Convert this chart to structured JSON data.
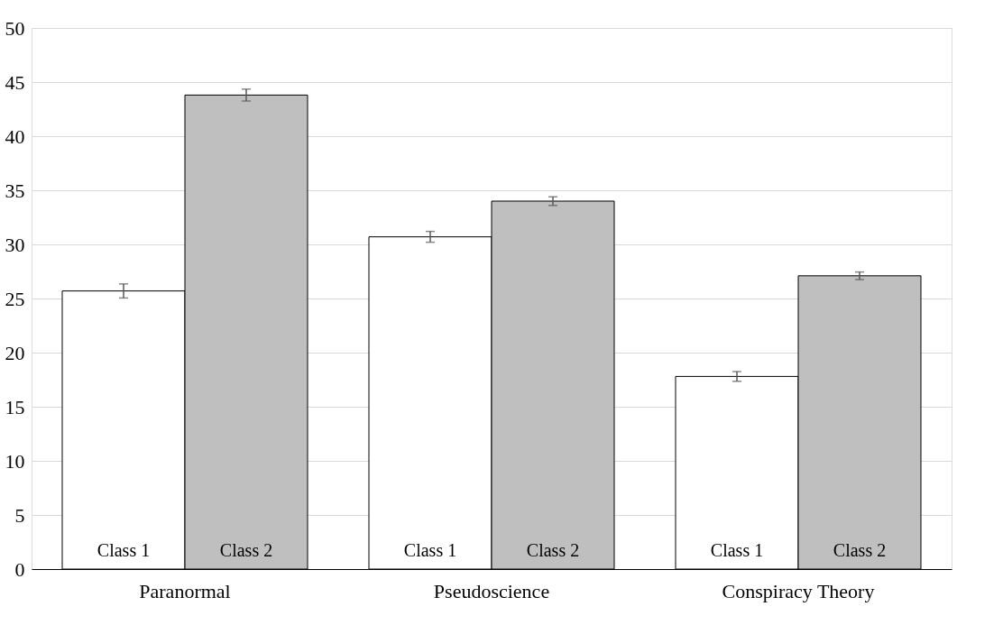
{
  "chart_data": {
    "type": "bar",
    "categories": [
      "Paranormal",
      "Pseudoscience",
      "Conspiracy Theory"
    ],
    "series": [
      {
        "name": "Class 1",
        "color": "#ffffff",
        "values": [
          25.7,
          30.7,
          17.8
        ],
        "errors": [
          0.65,
          0.5,
          0.45
        ]
      },
      {
        "name": "Class 2",
        "color": "#bfbfbf",
        "values": [
          43.8,
          34.0,
          27.1
        ],
        "errors": [
          0.55,
          0.4,
          0.35
        ]
      }
    ],
    "ylim": [
      0,
      50
    ],
    "yticks": [
      0,
      5,
      10,
      15,
      20,
      25,
      30,
      35,
      40,
      45,
      50
    ],
    "grid": "y"
  }
}
